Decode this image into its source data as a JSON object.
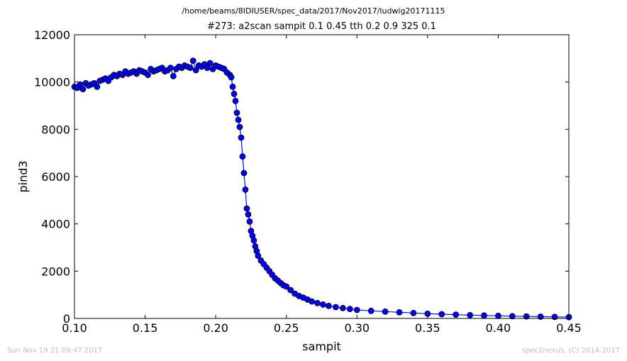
{
  "suptitle": "/home/beams/8IDIUSER/spec_data/2017/Nov2017/ludwig20171115",
  "footer": {
    "left": "Sun Nov 19 21:09:47 2017",
    "right": "spec2nexus, (C) 2014-2017"
  },
  "colors": {
    "line": "#0000ff",
    "marker_fill": "#0000ff",
    "marker_edge": "#000000"
  },
  "chart_data": {
    "type": "line",
    "title": "#273: a2scan  sampit 0.1 0.45  tth 0.2 0.9  325 0.1",
    "xlabel": "sampit",
    "ylabel": "pind3",
    "xlim": [
      0.1,
      0.45
    ],
    "ylim": [
      0,
      12000
    ],
    "xticks": [
      "0.10",
      "0.15",
      "0.20",
      "0.25",
      "0.30",
      "0.35",
      "0.40",
      "0.45"
    ],
    "yticks": [
      "0",
      "2000",
      "4000",
      "6000",
      "8000",
      "10000",
      "12000"
    ],
    "grid": false,
    "legend": "none",
    "series": [
      {
        "markers": "filled-circle",
        "x": [
          0.1,
          0.102,
          0.104,
          0.106,
          0.108,
          0.11,
          0.112,
          0.114,
          0.116,
          0.118,
          0.12,
          0.122,
          0.124,
          0.126,
          0.128,
          0.13,
          0.132,
          0.134,
          0.136,
          0.138,
          0.14,
          0.142,
          0.144,
          0.146,
          0.148,
          0.15,
          0.152,
          0.154,
          0.156,
          0.158,
          0.16,
          0.162,
          0.164,
          0.166,
          0.168,
          0.17,
          0.172,
          0.174,
          0.176,
          0.178,
          0.18,
          0.182,
          0.184,
          0.186,
          0.188,
          0.19,
          0.192,
          0.194,
          0.196,
          0.198,
          0.2,
          0.202,
          0.204,
          0.206,
          0.208,
          0.21,
          0.211,
          0.212,
          0.213,
          0.214,
          0.215,
          0.216,
          0.217,
          0.218,
          0.219,
          0.22,
          0.221,
          0.222,
          0.223,
          0.224,
          0.225,
          0.226,
          0.227,
          0.228,
          0.229,
          0.23,
          0.232,
          0.234,
          0.236,
          0.238,
          0.24,
          0.242,
          0.244,
          0.246,
          0.248,
          0.25,
          0.253,
          0.256,
          0.259,
          0.262,
          0.265,
          0.268,
          0.272,
          0.276,
          0.28,
          0.285,
          0.29,
          0.295,
          0.3,
          0.31,
          0.32,
          0.33,
          0.34,
          0.35,
          0.36,
          0.37,
          0.38,
          0.39,
          0.4,
          0.41,
          0.42,
          0.43,
          0.44,
          0.45
        ],
        "y": [
          9800,
          9750,
          9900,
          9700,
          9950,
          9850,
          9900,
          9950,
          9800,
          10050,
          10100,
          10150,
          10050,
          10200,
          10300,
          10250,
          10350,
          10300,
          10450,
          10350,
          10400,
          10450,
          10350,
          10500,
          10450,
          10400,
          10300,
          10550,
          10450,
          10500,
          10550,
          10600,
          10450,
          10500,
          10600,
          10250,
          10550,
          10650,
          10600,
          10700,
          10650,
          10600,
          10900,
          10500,
          10700,
          10650,
          10750,
          10600,
          10800,
          10550,
          10700,
          10650,
          10600,
          10550,
          10400,
          10300,
          10200,
          9800,
          9500,
          9200,
          8700,
          8400,
          8100,
          7650,
          6850,
          6150,
          5450,
          4650,
          4400,
          4100,
          3700,
          3500,
          3300,
          3050,
          2850,
          2650,
          2450,
          2300,
          2150,
          2000,
          1850,
          1700,
          1600,
          1500,
          1400,
          1350,
          1200,
          1050,
          950,
          880,
          800,
          720,
          650,
          590,
          530,
          480,
          440,
          400,
          360,
          320,
          290,
          260,
          230,
          200,
          180,
          160,
          140,
          125,
          110,
          95,
          85,
          75,
          65,
          55
        ]
      }
    ]
  }
}
